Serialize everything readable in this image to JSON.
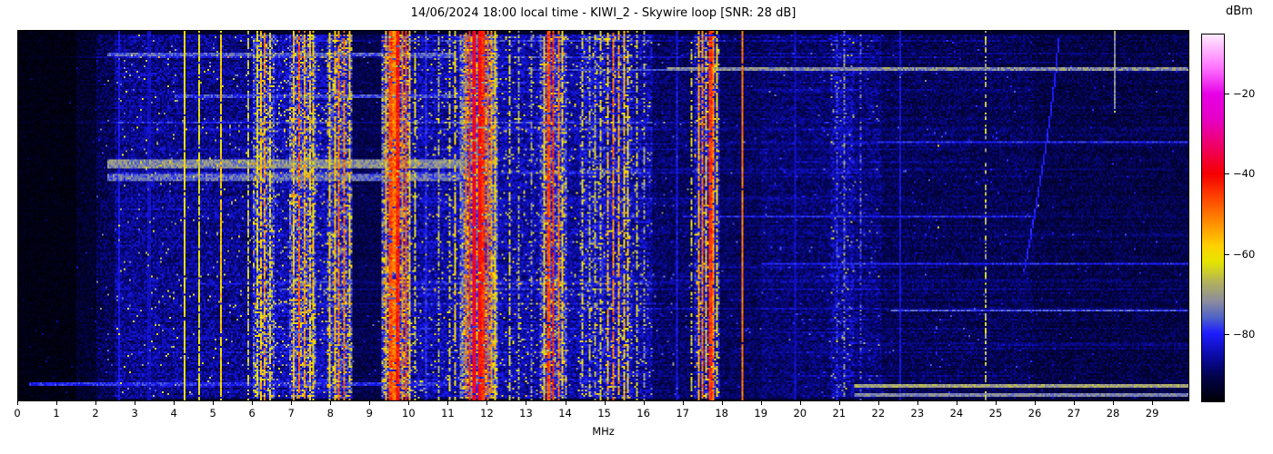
{
  "title": "14/06/2024 18:00 local time - KIWI_2 - Skywire loop [SNR: 28 dB]",
  "colorbar": {
    "label": "dBm",
    "ticks": [
      -20,
      -40,
      -60,
      -80
    ]
  },
  "chart_data": {
    "type": "heatmap",
    "title": "14/06/2024 18:00 local time - KIWI_2 - Skywire loop [SNR: 28 dB]",
    "xlabel": "MHz",
    "x_range": [
      0,
      29.95
    ],
    "x_ticks": [
      0,
      1,
      2,
      3,
      4,
      5,
      6,
      7,
      8,
      9,
      10,
      11,
      12,
      13,
      14,
      15,
      16,
      17,
      18,
      19,
      20,
      21,
      22,
      23,
      24,
      25,
      26,
      27,
      28,
      29
    ],
    "value_unit": "dBm",
    "value_range": [
      -97,
      -5
    ],
    "colormap": [
      [
        -97,
        "#000008"
      ],
      [
        -91,
        "#03034a"
      ],
      [
        -86,
        "#0a0aa0"
      ],
      [
        -80,
        "#1e1eff"
      ],
      [
        -76,
        "#5064c8"
      ],
      [
        -72,
        "#8c8ca0"
      ],
      [
        -67,
        "#b4b45a"
      ],
      [
        -62,
        "#e6e600"
      ],
      [
        -58,
        "#ffd200"
      ],
      [
        -52,
        "#ff8c00"
      ],
      [
        -46,
        "#ff4600"
      ],
      [
        -40,
        "#f50000"
      ],
      [
        -33,
        "#f00064"
      ],
      [
        -26,
        "#e600c8"
      ],
      [
        -20,
        "#e600e6"
      ],
      [
        -13,
        "#ff78ff"
      ],
      [
        -5,
        "#ffeaff"
      ]
    ],
    "noise_regions": [
      {
        "f0": 0.0,
        "f1": 1.5,
        "level": -96,
        "sd": 1.5,
        "sparkle": 0.003,
        "sboost": 8,
        "row": 0.15
      },
      {
        "f0": 1.5,
        "f1": 2.0,
        "level": -93.5,
        "sd": 2.5,
        "sparkle": 0.006,
        "sboost": 10,
        "row": 0.3
      },
      {
        "f0": 2.0,
        "f1": 2.45,
        "level": -90.5,
        "sd": 3.5,
        "sparkle": 0.01,
        "sboost": 14,
        "row": 0.5
      },
      {
        "f0": 2.45,
        "f1": 6.0,
        "level": -87,
        "sd": 4.5,
        "sparkle": 0.02,
        "sboost": 20,
        "row": 0.9
      },
      {
        "f0": 6.0,
        "f1": 6.55,
        "level": -81,
        "sd": 7,
        "sparkle": 0.18,
        "sboost": 18,
        "row": 1.0
      },
      {
        "f0": 6.55,
        "f1": 6.95,
        "level": -85,
        "sd": 5,
        "sparkle": 0.06,
        "sboost": 20,
        "row": 1.0
      },
      {
        "f0": 6.95,
        "f1": 7.65,
        "level": -80,
        "sd": 7,
        "sparkle": 0.2,
        "sboost": 18,
        "row": 1.0
      },
      {
        "f0": 7.65,
        "f1": 7.9,
        "level": -85,
        "sd": 5,
        "sparkle": 0.06,
        "sboost": 20,
        "row": 1.0
      },
      {
        "f0": 7.9,
        "f1": 8.55,
        "level": -81,
        "sd": 7,
        "sparkle": 0.16,
        "sboost": 18,
        "row": 1.0
      },
      {
        "f0": 8.55,
        "f1": 9.3,
        "level": -91,
        "sd": 2.5,
        "sparkle": 0.01,
        "sboost": 12,
        "row": 0.5
      },
      {
        "f0": 9.3,
        "f1": 10.05,
        "level": -79,
        "sd": 7,
        "sparkle": 0.2,
        "sboost": 17,
        "row": 1.0
      },
      {
        "f0": 10.05,
        "f1": 11.3,
        "level": -85.5,
        "sd": 5,
        "sparkle": 0.05,
        "sboost": 20,
        "row": 1.0
      },
      {
        "f0": 11.3,
        "f1": 12.3,
        "level": -77,
        "sd": 7,
        "sparkle": 0.22,
        "sboost": 16,
        "row": 1.0
      },
      {
        "f0": 12.3,
        "f1": 13.35,
        "level": -85.5,
        "sd": 5,
        "sparkle": 0.05,
        "sboost": 20,
        "row": 1.0
      },
      {
        "f0": 13.35,
        "f1": 14.05,
        "level": -80,
        "sd": 7,
        "sparkle": 0.16,
        "sboost": 18,
        "row": 1.0
      },
      {
        "f0": 14.05,
        "f1": 14.35,
        "level": -86,
        "sd": 4.5,
        "sparkle": 0.04,
        "sboost": 20,
        "row": 0.9
      },
      {
        "f0": 14.35,
        "f1": 15.7,
        "level": -84,
        "sd": 6,
        "sparkle": 0.09,
        "sboost": 20,
        "row": 1.0
      },
      {
        "f0": 15.7,
        "f1": 16.25,
        "level": -86,
        "sd": 5,
        "sparkle": 0.05,
        "sboost": 18,
        "row": 0.9
      },
      {
        "f0": 16.25,
        "f1": 17.3,
        "level": -89.5,
        "sd": 3.5,
        "sparkle": 0.015,
        "sboost": 12,
        "row": 0.6
      },
      {
        "f0": 17.3,
        "f1": 17.95,
        "level": -84,
        "sd": 6,
        "sparkle": 0.08,
        "sboost": 20,
        "row": 0.9
      },
      {
        "f0": 17.95,
        "f1": 19.0,
        "level": -90,
        "sd": 3,
        "sparkle": 0.01,
        "sboost": 10,
        "row": 0.5
      },
      {
        "f0": 19.0,
        "f1": 20.8,
        "level": -89,
        "sd": 3.5,
        "sparkle": 0.012,
        "sboost": 10,
        "row": 0.6
      },
      {
        "f0": 20.8,
        "f1": 21.4,
        "level": -86.5,
        "sd": 5,
        "sparkle": 0.04,
        "sboost": 16,
        "row": 0.7
      },
      {
        "f0": 21.4,
        "f1": 22.1,
        "level": -88.5,
        "sd": 4,
        "sparkle": 0.02,
        "sboost": 12,
        "row": 0.6
      },
      {
        "f0": 22.1,
        "f1": 26.0,
        "level": -90.5,
        "sd": 3.2,
        "sparkle": 0.008,
        "sboost": 10,
        "row": 0.55
      },
      {
        "f0": 26.0,
        "f1": 29.95,
        "level": -91.5,
        "sd": 3,
        "sparkle": 0.006,
        "sboost": 9,
        "row": 0.5
      }
    ],
    "signal_lines": [
      {
        "f": 2.58,
        "w": 0.05,
        "level": -82,
        "sd": 2
      },
      {
        "f": 3.35,
        "w": 0.05,
        "level": -84,
        "sd": 2
      },
      {
        "f": 4.27,
        "w": 0.06,
        "level": -60,
        "sd": 3,
        "gap": 0.05
      },
      {
        "f": 4.62,
        "w": 0.05,
        "level": -63,
        "sd": 3,
        "gap": 0.15
      },
      {
        "f": 5.17,
        "w": 0.06,
        "level": -58,
        "sd": 5,
        "gap": 0.1
      },
      {
        "f": 5.9,
        "w": 0.05,
        "level": -66,
        "sd": 5,
        "gap": 0.3
      },
      {
        "f": 6.1,
        "w": 0.05,
        "level": -63,
        "sd": 5,
        "gap": 0.25
      },
      {
        "f": 6.2,
        "w": 0.05,
        "level": -57,
        "sd": 5,
        "gap": 0.2
      },
      {
        "f": 6.31,
        "w": 0.05,
        "level": -53,
        "sd": 6,
        "gap": 0.2
      },
      {
        "f": 6.42,
        "w": 0.05,
        "level": -60,
        "sd": 5,
        "gap": 0.3
      },
      {
        "f": 7.05,
        "w": 0.05,
        "level": -56,
        "sd": 5,
        "gap": 0.2
      },
      {
        "f": 7.2,
        "w": 0.06,
        "level": -48,
        "sd": 6,
        "gap": 0.15
      },
      {
        "f": 7.33,
        "w": 0.05,
        "level": -54,
        "sd": 5,
        "gap": 0.2
      },
      {
        "f": 7.45,
        "w": 0.05,
        "level": -57,
        "sd": 5,
        "gap": 0.25
      },
      {
        "f": 7.56,
        "w": 0.05,
        "level": -60,
        "sd": 5,
        "gap": 0.3
      },
      {
        "f": 7.98,
        "w": 0.05,
        "level": -59,
        "sd": 5,
        "gap": 0.25
      },
      {
        "f": 8.1,
        "w": 0.05,
        "level": -56,
        "sd": 5,
        "gap": 0.2
      },
      {
        "f": 8.22,
        "w": 0.06,
        "level": -50,
        "sd": 6,
        "gap": 0.15
      },
      {
        "f": 8.36,
        "w": 0.06,
        "level": -50,
        "sd": 6,
        "gap": 0.15
      },
      {
        "f": 8.47,
        "w": 0.05,
        "level": -59,
        "sd": 5,
        "gap": 0.3
      },
      {
        "f": 9.43,
        "w": 0.05,
        "level": -54,
        "sd": 5,
        "gap": 0.15
      },
      {
        "f": 9.53,
        "w": 0.08,
        "level": -46,
        "sd": 5,
        "gap": 0.1
      },
      {
        "f": 9.63,
        "w": 0.06,
        "level": -50,
        "sd": 5,
        "gap": 0.1
      },
      {
        "f": 9.72,
        "w": 0.1,
        "level": -42,
        "sd": 4,
        "gap": 0.05
      },
      {
        "f": 9.83,
        "w": 0.06,
        "level": -50,
        "sd": 5,
        "gap": 0.15
      },
      {
        "f": 9.93,
        "w": 0.05,
        "level": -46,
        "sd": 5,
        "gap": 0.1
      },
      {
        "f": 10.02,
        "w": 0.05,
        "level": -57,
        "sd": 5,
        "gap": 0.25
      },
      {
        "f": 10.15,
        "w": 0.05,
        "level": -64,
        "sd": 5,
        "gap": 0.35
      },
      {
        "f": 10.45,
        "w": 0.05,
        "level": -80,
        "sd": 3
      },
      {
        "f": 10.75,
        "w": 0.05,
        "level": -68,
        "sd": 6,
        "gap": 0.45
      },
      {
        "f": 11.05,
        "w": 0.05,
        "level": -64,
        "sd": 6,
        "gap": 0.4
      },
      {
        "f": 11.2,
        "w": 0.05,
        "level": -61,
        "sd": 6,
        "gap": 0.35
      },
      {
        "f": 11.45,
        "w": 0.06,
        "level": -50,
        "sd": 5,
        "gap": 0.15
      },
      {
        "f": 11.56,
        "w": 0.08,
        "level": -44,
        "sd": 4,
        "gap": 0.08
      },
      {
        "f": 11.68,
        "w": 0.1,
        "level": -38,
        "sd": 4,
        "gap": 0.04
      },
      {
        "f": 11.8,
        "w": 0.1,
        "level": -40,
        "sd": 4,
        "gap": 0.04
      },
      {
        "f": 11.91,
        "w": 0.07,
        "level": -44,
        "sd": 4,
        "gap": 0.08
      },
      {
        "f": 12.01,
        "w": 0.06,
        "level": -47,
        "sd": 5,
        "gap": 0.1
      },
      {
        "f": 12.11,
        "w": 0.05,
        "level": -53,
        "sd": 5,
        "gap": 0.15
      },
      {
        "f": 12.21,
        "w": 0.05,
        "level": -59,
        "sd": 5,
        "gap": 0.25
      },
      {
        "f": 12.56,
        "w": 0.05,
        "level": -63,
        "sd": 5,
        "gap": 0.35
      },
      {
        "f": 12.8,
        "w": 0.05,
        "level": -69,
        "sd": 6,
        "gap": 0.5
      },
      {
        "f": 13.15,
        "w": 0.05,
        "level": -71,
        "sd": 6,
        "gap": 0.5
      },
      {
        "f": 13.46,
        "w": 0.05,
        "level": -57,
        "sd": 5,
        "gap": 0.2
      },
      {
        "f": 13.58,
        "w": 0.07,
        "level": -46,
        "sd": 5,
        "gap": 0.1
      },
      {
        "f": 13.7,
        "w": 0.08,
        "level": -44,
        "sd": 5,
        "gap": 0.08
      },
      {
        "f": 13.83,
        "w": 0.06,
        "level": -50,
        "sd": 5,
        "gap": 0.15
      },
      {
        "f": 13.95,
        "w": 0.05,
        "level": -58,
        "sd": 5,
        "gap": 0.3
      },
      {
        "f": 14.45,
        "w": 0.05,
        "level": -64,
        "sd": 6,
        "gap": 0.4
      },
      {
        "f": 14.62,
        "w": 0.05,
        "level": -66,
        "sd": 6,
        "gap": 0.45
      },
      {
        "f": 14.78,
        "w": 0.05,
        "level": -68,
        "sd": 6,
        "gap": 0.5
      },
      {
        "f": 14.92,
        "w": 0.05,
        "level": -63,
        "sd": 6,
        "gap": 0.4
      },
      {
        "f": 15.1,
        "w": 0.05,
        "level": -57,
        "sd": 6,
        "gap": 0.25
      },
      {
        "f": 15.22,
        "w": 0.06,
        "level": -51,
        "sd": 6,
        "gap": 0.15
      },
      {
        "f": 15.36,
        "w": 0.05,
        "level": -55,
        "sd": 6,
        "gap": 0.2
      },
      {
        "f": 15.5,
        "w": 0.05,
        "level": -57,
        "sd": 6,
        "gap": 0.25
      },
      {
        "f": 15.62,
        "w": 0.05,
        "level": -61,
        "sd": 6,
        "gap": 0.3
      },
      {
        "f": 15.82,
        "w": 0.05,
        "level": -66,
        "sd": 6,
        "gap": 0.45
      },
      {
        "f": 16.02,
        "w": 0.05,
        "level": -70,
        "sd": 6,
        "gap": 0.5
      },
      {
        "f": 16.85,
        "w": 0.05,
        "level": -82,
        "sd": 3
      },
      {
        "f": 17.25,
        "w": 0.05,
        "level": -64,
        "sd": 6,
        "gap": 0.55
      },
      {
        "f": 17.42,
        "w": 0.07,
        "level": -54,
        "sd": 5,
        "gap": 0.15
      },
      {
        "f": 17.52,
        "w": 0.05,
        "level": -50,
        "sd": 5,
        "gap": 0.15
      },
      {
        "f": 17.62,
        "w": 0.05,
        "level": -56,
        "sd": 5,
        "gap": 0.2
      },
      {
        "f": 17.72,
        "w": 0.05,
        "level": -44,
        "sd": 4,
        "gap": 0.05
      },
      {
        "f": 17.8,
        "w": 0.06,
        "level": -52,
        "sd": 5,
        "gap": 0.15
      },
      {
        "f": 17.88,
        "w": 0.05,
        "level": -60,
        "sd": 5,
        "gap": 0.3
      },
      {
        "f": 18.53,
        "w": 0.05,
        "level": -50,
        "sd": 3,
        "gap": 0.03
      },
      {
        "f": 19.87,
        "w": 0.05,
        "level": -84,
        "sd": 2
      },
      {
        "f": 20.95,
        "w": 0.05,
        "level": -80,
        "sd": 5,
        "gap": 0.3
      },
      {
        "f": 21.15,
        "w": 0.05,
        "level": -74,
        "sd": 7,
        "gap": 0.4
      },
      {
        "f": 21.55,
        "w": 0.05,
        "level": -78,
        "sd": 6,
        "gap": 0.4
      },
      {
        "f": 22.57,
        "w": 0.05,
        "level": -83,
        "sd": 2
      },
      {
        "f": 24.78,
        "w": 0.05,
        "level": -67,
        "sd": 5,
        "gap": 0.45
      },
      {
        "f": 28.05,
        "w": 0.05,
        "level": -72,
        "sd": 3,
        "y0": 0,
        "y1": 0.21
      }
    ],
    "streaks": [
      {
        "f0": 2.3,
        "f1": 11.45,
        "y": 0.36,
        "h": 5,
        "level": -72,
        "sd": 5
      },
      {
        "f0": 2.3,
        "f1": 11.3,
        "y": 0.395,
        "h": 4,
        "level": -75,
        "sd": 5
      },
      {
        "f0": 2.3,
        "f1": 11.2,
        "y": 0.065,
        "h": 2,
        "level": -76,
        "sd": 4
      },
      {
        "f0": 4.0,
        "f1": 11.4,
        "y": 0.175,
        "h": 2,
        "level": -78,
        "sd": 4
      },
      {
        "f0": 16.6,
        "f1": 29.95,
        "y": 0.105,
        "h": 2,
        "level": -72,
        "sd": 5
      },
      {
        "f0": 13.0,
        "f1": 22.0,
        "y": 0.105,
        "h": 1,
        "level": -78,
        "sd": 3
      },
      {
        "f0": 21.4,
        "f1": 29.95,
        "y": 0.96,
        "h": 2,
        "level": -69,
        "sd": 4
      },
      {
        "f0": 21.4,
        "f1": 29.95,
        "y": 0.985,
        "h": 2,
        "level": -73,
        "sd": 3
      },
      {
        "f0": 0.3,
        "f1": 11.0,
        "y": 0.955,
        "h": 2,
        "level": -80,
        "sd": 4
      },
      {
        "f0": 17.0,
        "f1": 26.0,
        "y": 0.5,
        "h": 1,
        "level": -80,
        "sd": 3
      },
      {
        "f0": 22.0,
        "f1": 29.95,
        "y": 0.3,
        "h": 1,
        "level": -80,
        "sd": 3
      },
      {
        "f0": 22.3,
        "f1": 29.95,
        "y": 0.755,
        "h": 1,
        "level": -77,
        "sd": 3
      },
      {
        "f0": 19.0,
        "f1": 29.95,
        "y": 0.63,
        "h": 1,
        "level": -80,
        "sd": 3
      }
    ],
    "curve": {
      "f_top": 26.6,
      "f_bot": 25.72,
      "y0": 0.02,
      "y1": 0.65,
      "level": -81
    },
    "dots": [
      {
        "f": 23.53,
        "y": 0.31,
        "level": -58
      },
      {
        "f": 23.2,
        "y": 0.13,
        "level": -72
      },
      {
        "f": 23.55,
        "y": 0.53,
        "level": -60
      },
      {
        "f": 28.05,
        "y": 0.215,
        "level": -65
      },
      {
        "f": 26.1,
        "y": 0.47,
        "level": -70
      }
    ]
  }
}
